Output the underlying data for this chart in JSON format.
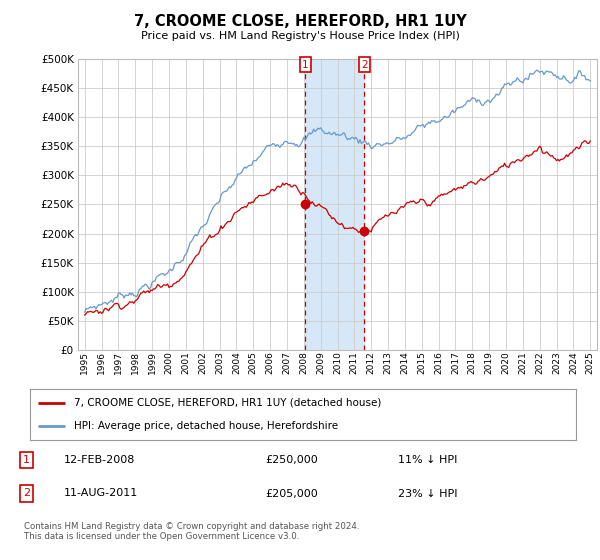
{
  "title": "7, CROOME CLOSE, HEREFORD, HR1 1UY",
  "subtitle": "Price paid vs. HM Land Registry's House Price Index (HPI)",
  "ylim": [
    0,
    500000
  ],
  "yticks": [
    0,
    50000,
    100000,
    150000,
    200000,
    250000,
    300000,
    350000,
    400000,
    450000,
    500000
  ],
  "xlim_min": 1994.6,
  "xlim_max": 2025.4,
  "sale1_date_num": 2008.1,
  "sale1_price": 250000,
  "sale2_date_num": 2011.6,
  "sale2_price": 205000,
  "hpi_color": "#6699cc",
  "price_color": "#cc0000",
  "shaded_color": "#d6e8f7",
  "legend_label_price": "7, CROOME CLOSE, HEREFORD, HR1 1UY (detached house)",
  "legend_label_hpi": "HPI: Average price, detached house, Herefordshire",
  "footer": "Contains HM Land Registry data © Crown copyright and database right 2024.\nThis data is licensed under the Open Government Licence v3.0.",
  "background_color": "#ffffff",
  "grid_color": "#cccccc"
}
